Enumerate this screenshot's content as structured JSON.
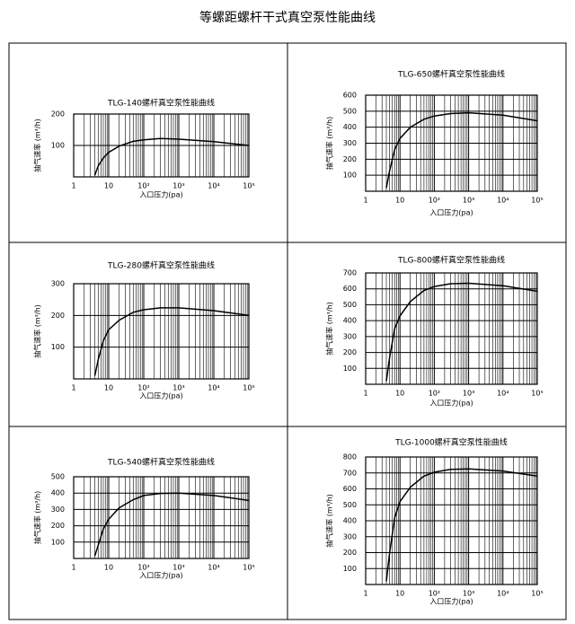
{
  "title": "等螺距螺杆干式真空泵性能曲线",
  "chart_data": [
    {
      "type": "line",
      "title": "TLG-140螺杆真空泵性能曲线",
      "x_label": "入口压力(pa)",
      "y_label": "抽气速率 (m³/h)",
      "xscale": "log",
      "grid": true,
      "color": "#000000",
      "xlim": [
        1,
        100000
      ],
      "xticks": [
        1,
        10,
        {
          "value": 100,
          "label": "10²"
        },
        {
          "value": 1000,
          "label": "10³"
        },
        {
          "value": 10000,
          "label": "10⁴"
        },
        {
          "value": 100000,
          "label": "10⁵"
        }
      ],
      "ylim": [
        0,
        200
      ],
      "yticks": [
        100,
        200
      ],
      "x": [
        4,
        5,
        7,
        10,
        20,
        50,
        100,
        300,
        1000,
        10000,
        100000
      ],
      "values": [
        5,
        35,
        60,
        78,
        98,
        113,
        118,
        122,
        120,
        112,
        100
      ]
    },
    {
      "type": "line",
      "title": "TLG-650螺杆真空泵性能曲线",
      "x_label": "入口压力(pa)",
      "y_label": "抽气速率 (m³/h)",
      "xscale": "log",
      "grid": true,
      "color": "#000000",
      "xlim": [
        1,
        100000
      ],
      "xticks": [
        1,
        10,
        {
          "value": 100,
          "label": "10²"
        },
        {
          "value": 1000,
          "label": "10³"
        },
        {
          "value": 10000,
          "label": "10⁴"
        },
        {
          "value": 100000,
          "label": "10⁵"
        }
      ],
      "ylim": [
        0,
        600
      ],
      "yticks": [
        100,
        200,
        300,
        400,
        500,
        600
      ],
      "x": [
        4,
        5,
        7,
        10,
        20,
        50,
        100,
        300,
        1000,
        10000,
        100000
      ],
      "values": [
        20,
        130,
        260,
        330,
        400,
        450,
        470,
        485,
        490,
        475,
        440
      ]
    },
    {
      "type": "line",
      "title": "TLG-280螺杆真空泵性能曲线",
      "x_label": "入口压力(pa)",
      "y_label": "抽气速率 (m³/h)",
      "xscale": "log",
      "grid": true,
      "color": "#000000",
      "xlim": [
        1,
        100000
      ],
      "xticks": [
        1,
        10,
        {
          "value": 100,
          "label": "10²"
        },
        {
          "value": 1000,
          "label": "10³"
        },
        {
          "value": 10000,
          "label": "10⁴"
        },
        {
          "value": 100000,
          "label": "10⁵"
        }
      ],
      "ylim": [
        0,
        300
      ],
      "yticks": [
        100,
        200,
        300
      ],
      "x": [
        4,
        5,
        7,
        10,
        20,
        50,
        100,
        300,
        1000,
        10000,
        100000
      ],
      "values": [
        10,
        60,
        120,
        155,
        185,
        210,
        218,
        224,
        224,
        215,
        200
      ]
    },
    {
      "type": "line",
      "title": "TLG-800螺杆真空泵性能曲线",
      "x_label": "入口压力(pa)",
      "y_label": "抽气速率 (m³/h)",
      "xscale": "log",
      "grid": true,
      "color": "#000000",
      "xlim": [
        1,
        100000
      ],
      "xticks": [
        1,
        10,
        {
          "value": 100,
          "label": "10²"
        },
        {
          "value": 1000,
          "label": "10³"
        },
        {
          "value": 10000,
          "label": "10⁴"
        },
        {
          "value": 100000,
          "label": "10⁵"
        }
      ],
      "ylim": [
        0,
        700
      ],
      "yticks": [
        100,
        200,
        300,
        400,
        500,
        600,
        700
      ],
      "x": [
        4,
        5,
        7,
        10,
        20,
        50,
        100,
        300,
        1000,
        10000,
        100000
      ],
      "values": [
        20,
        170,
        350,
        430,
        520,
        590,
        615,
        632,
        635,
        620,
        585
      ]
    },
    {
      "type": "line",
      "title": "TLG-540螺杆真空泵性能曲线",
      "x_label": "入口压力(pa)",
      "y_label": "抽气速率 (m³/h)",
      "xscale": "log",
      "grid": true,
      "color": "#000000",
      "xlim": [
        1,
        100000
      ],
      "xticks": [
        1,
        10,
        {
          "value": 100,
          "label": "10²"
        },
        {
          "value": 1000,
          "label": "10³"
        },
        {
          "value": 10000,
          "label": "10⁴"
        },
        {
          "value": 100000,
          "label": "10⁵"
        }
      ],
      "ylim": [
        0,
        500
      ],
      "yticks": [
        100,
        200,
        300,
        400,
        500
      ],
      "x": [
        4,
        5,
        7,
        10,
        20,
        50,
        100,
        300,
        1000,
        10000,
        100000
      ],
      "values": [
        15,
        80,
        180,
        240,
        310,
        360,
        385,
        398,
        400,
        385,
        355
      ]
    },
    {
      "type": "line",
      "title": "TLG-1000螺杆真空泵性能曲线",
      "x_label": "入口压力(pa)",
      "y_label": "抽气速率 (m³/h)",
      "xscale": "log",
      "grid": true,
      "color": "#000000",
      "xlim": [
        1,
        100000
      ],
      "xticks": [
        1,
        10,
        {
          "value": 100,
          "label": "10²"
        },
        {
          "value": 1000,
          "label": "10³"
        },
        {
          "value": 10000,
          "label": "10⁴"
        },
        {
          "value": 100000,
          "label": "10⁵"
        }
      ],
      "ylim": [
        0,
        800
      ],
      "yticks": [
        100,
        200,
        300,
        400,
        500,
        600,
        700,
        800
      ],
      "x": [
        4,
        5,
        7,
        10,
        20,
        50,
        100,
        300,
        1000,
        10000,
        100000
      ],
      "values": [
        20,
        200,
        420,
        520,
        610,
        680,
        705,
        722,
        725,
        712,
        680
      ]
    }
  ]
}
